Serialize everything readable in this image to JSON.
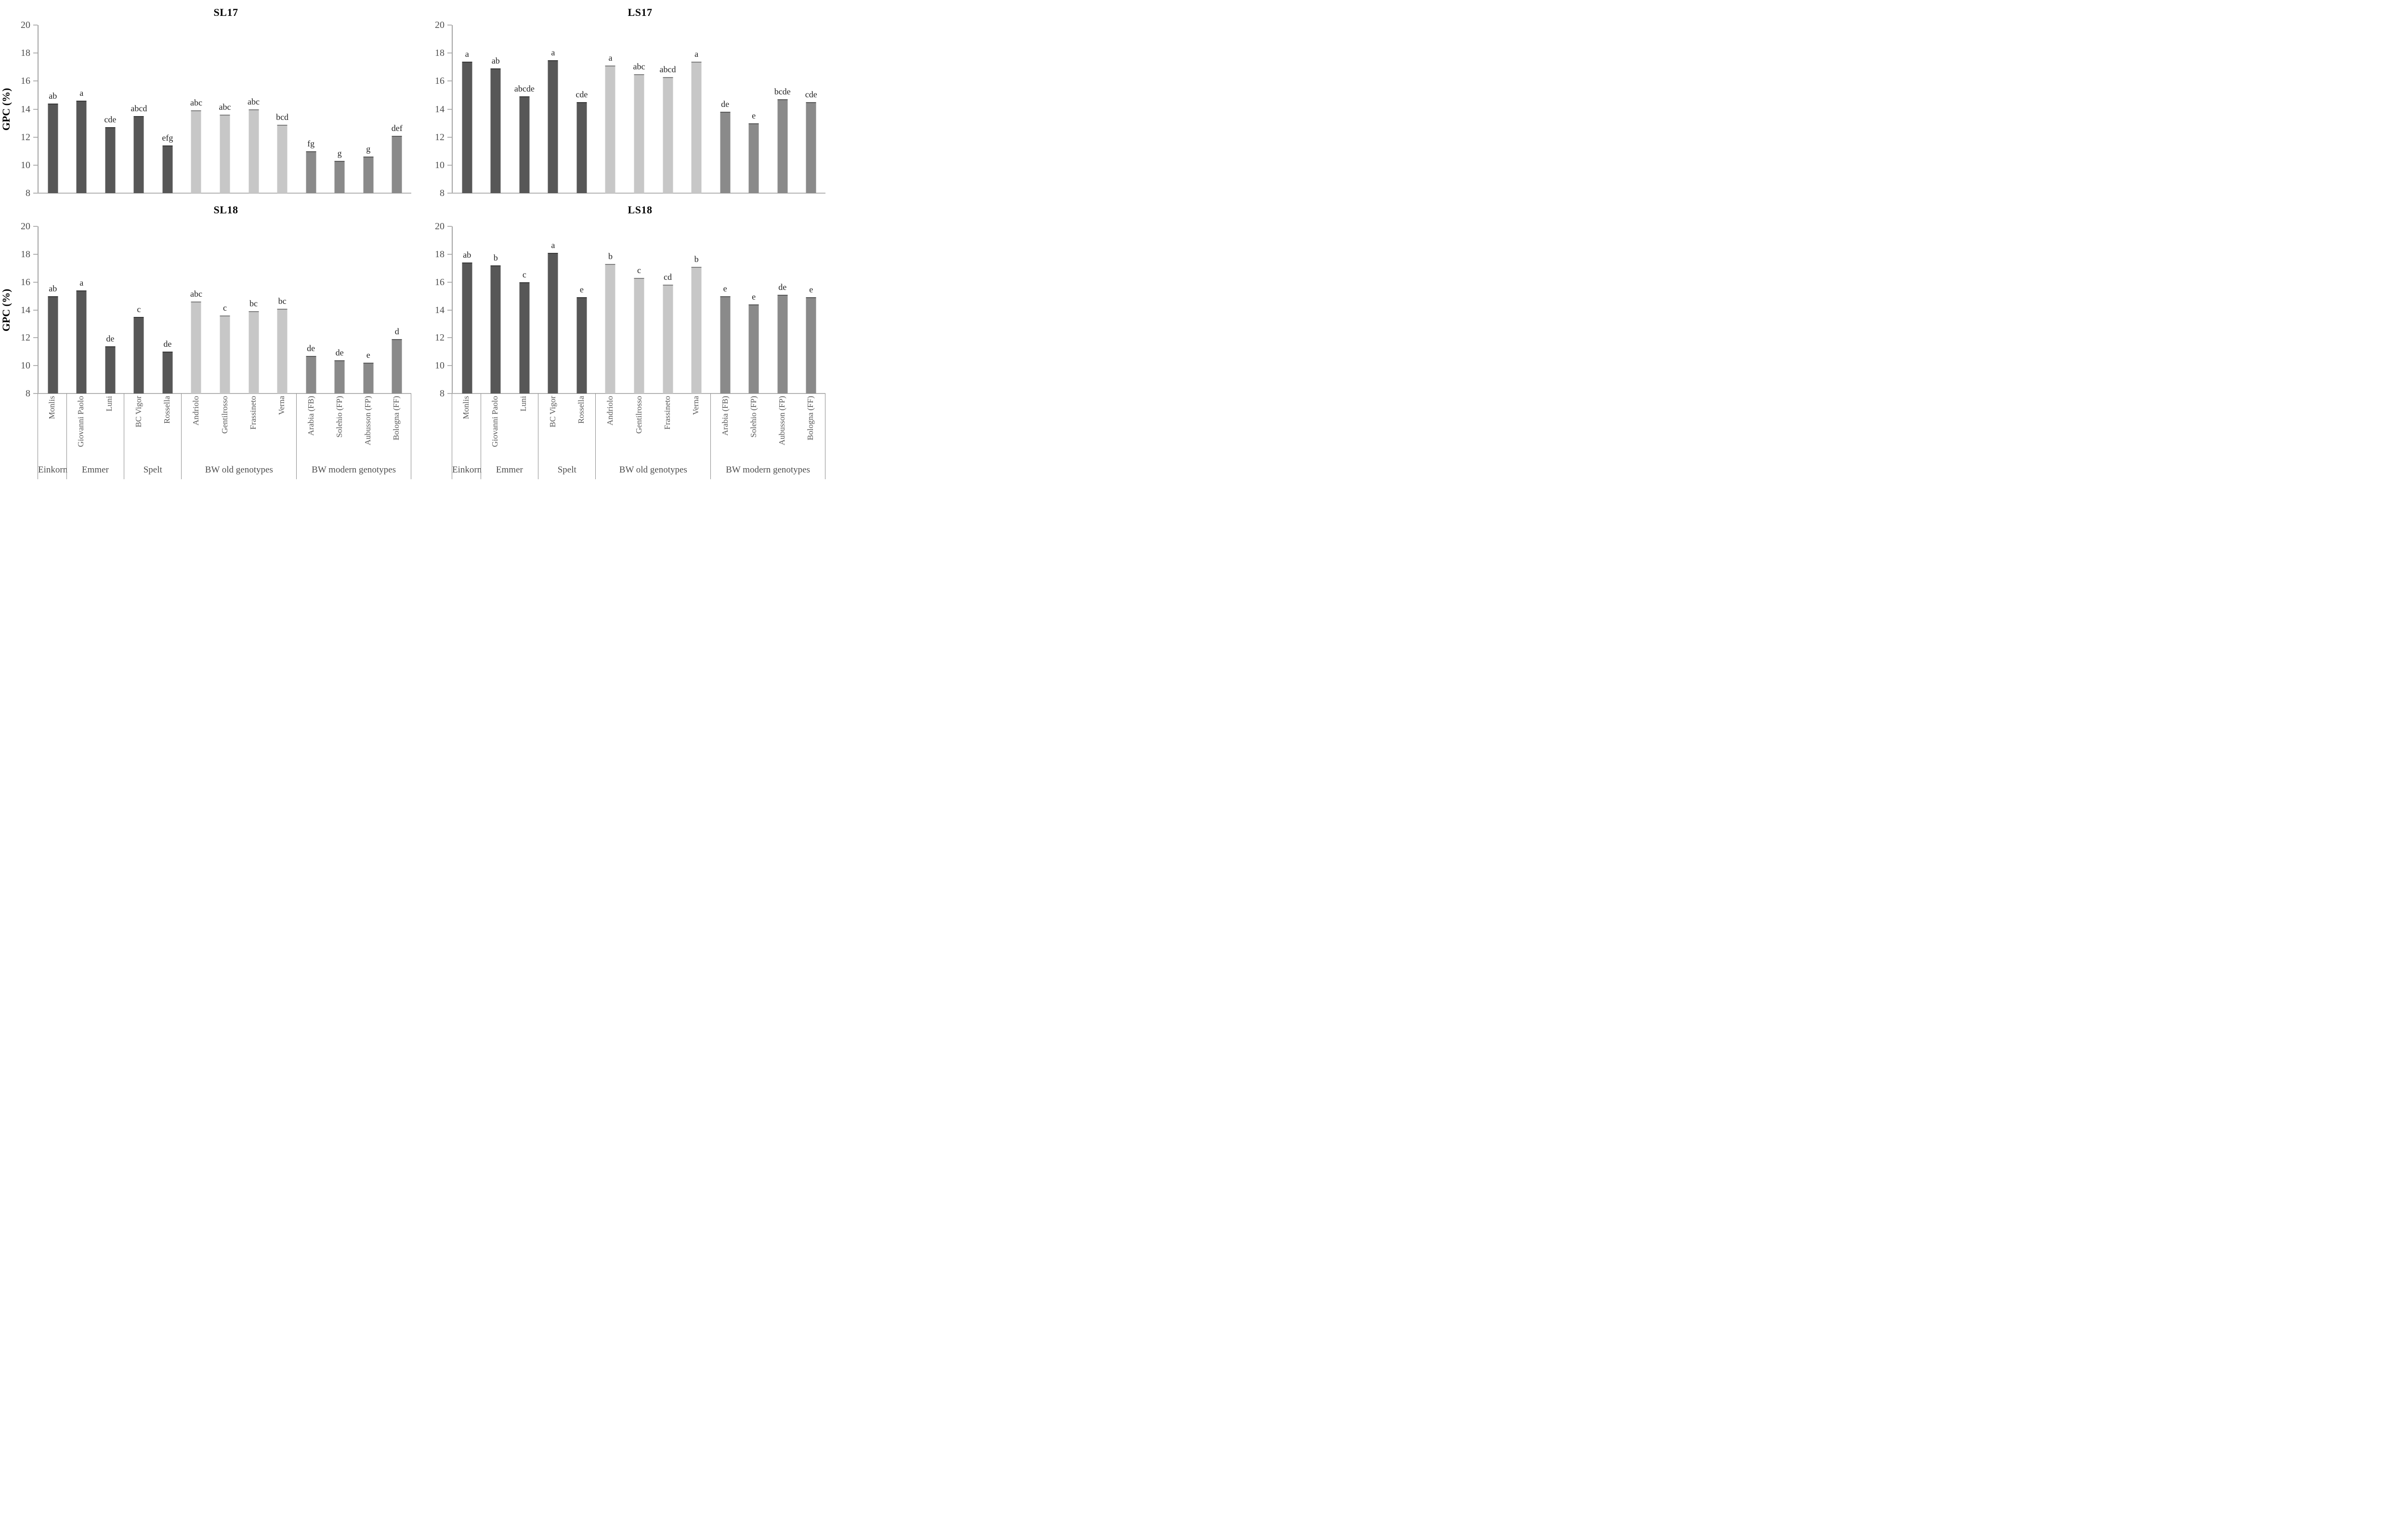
{
  "figure": {
    "ylabel": "GPC (%)",
    "ylim": [
      8,
      20
    ],
    "y_ticks": [
      20,
      18,
      16,
      14,
      12,
      10,
      8
    ],
    "grid": "off",
    "legend": "none",
    "colors": {
      "hulled_bar": "#575757",
      "bw_old_bar": "#c7c7c7",
      "bw_modern_bar": "#8a8a8a",
      "axis": "#a3a3a3",
      "tick_text": "#4d4d4d",
      "title_text": "#000000",
      "category_text": "#595959",
      "group_text": "#4d4d4d",
      "letter_text": "#1f1f1f"
    }
  },
  "categories": [
    "Monlis",
    "Giovanni Paolo",
    "Luni",
    "BC Vigor",
    "Rossella",
    "Andriolo",
    "Gentilrosso",
    "Frassineto",
    "Verna",
    "Arabia (FB)",
    "Solehio (FP)",
    "Aubusson (FP)",
    "Bologna (FF)"
  ],
  "category_groups": [
    {
      "label": "Einkorn",
      "count": 1,
      "color_key": "hulled_bar"
    },
    {
      "label": "Emmer",
      "count": 2,
      "color_key": "hulled_bar"
    },
    {
      "label": "Spelt",
      "count": 2,
      "color_key": "hulled_bar"
    },
    {
      "label": "BW old genotypes",
      "count": 4,
      "color_key": "bw_old_bar"
    },
    {
      "label": "BW modern genotypes",
      "count": 4,
      "color_key": "bw_modern_bar"
    }
  ],
  "chart_data": [
    {
      "type": "bar",
      "title": "SL17",
      "panel": "top-left",
      "ylabel": "GPC (%)",
      "ylim": [
        8,
        20
      ],
      "show_x_labels": false,
      "categories_ref": "categories",
      "values": [
        14.4,
        14.6,
        12.7,
        13.5,
        11.4,
        13.9,
        13.6,
        14.0,
        12.9,
        11.0,
        10.3,
        10.6,
        12.1
      ],
      "sig_letters": [
        "ab",
        "a",
        "cde",
        "abcd",
        "efg",
        "abc",
        "abc",
        "abc",
        "bcd",
        "fg",
        "g",
        "g",
        "def"
      ]
    },
    {
      "type": "bar",
      "title": "LS17",
      "panel": "top-right",
      "ylim": [
        8,
        20
      ],
      "show_x_labels": false,
      "categories_ref": "categories",
      "values": [
        17.4,
        16.9,
        14.9,
        17.5,
        14.5,
        17.1,
        16.5,
        16.3,
        17.4,
        13.8,
        13.0,
        14.7,
        14.5
      ],
      "sig_letters": [
        "a",
        "ab",
        "abcde",
        "a",
        "cde",
        "a",
        "abc",
        "abcd",
        "a",
        "de",
        "e",
        "bcde",
        "cde"
      ]
    },
    {
      "type": "bar",
      "title": "SL18",
      "panel": "bottom-left",
      "ylabel": "GPC (%)",
      "ylim": [
        8,
        20
      ],
      "show_x_labels": true,
      "categories_ref": "categories",
      "values": [
        15.0,
        15.4,
        11.4,
        13.5,
        11.0,
        14.6,
        13.6,
        13.9,
        14.1,
        10.7,
        10.4,
        10.2,
        11.9
      ],
      "sig_letters": [
        "ab",
        "a",
        "de",
        "c",
        "de",
        "abc",
        "c",
        "bc",
        "bc",
        "de",
        "de",
        "e",
        "d"
      ]
    },
    {
      "type": "bar",
      "title": "LS18",
      "panel": "bottom-right",
      "ylim": [
        8,
        20
      ],
      "show_x_labels": true,
      "categories_ref": "categories",
      "values": [
        17.4,
        17.2,
        16.0,
        18.1,
        14.9,
        17.3,
        16.3,
        15.8,
        17.1,
        15.0,
        14.4,
        15.1,
        14.9
      ],
      "sig_letters": [
        "ab",
        "b",
        "c",
        "a",
        "e",
        "b",
        "c",
        "cd",
        "b",
        "e",
        "e",
        "de",
        "e"
      ]
    }
  ]
}
